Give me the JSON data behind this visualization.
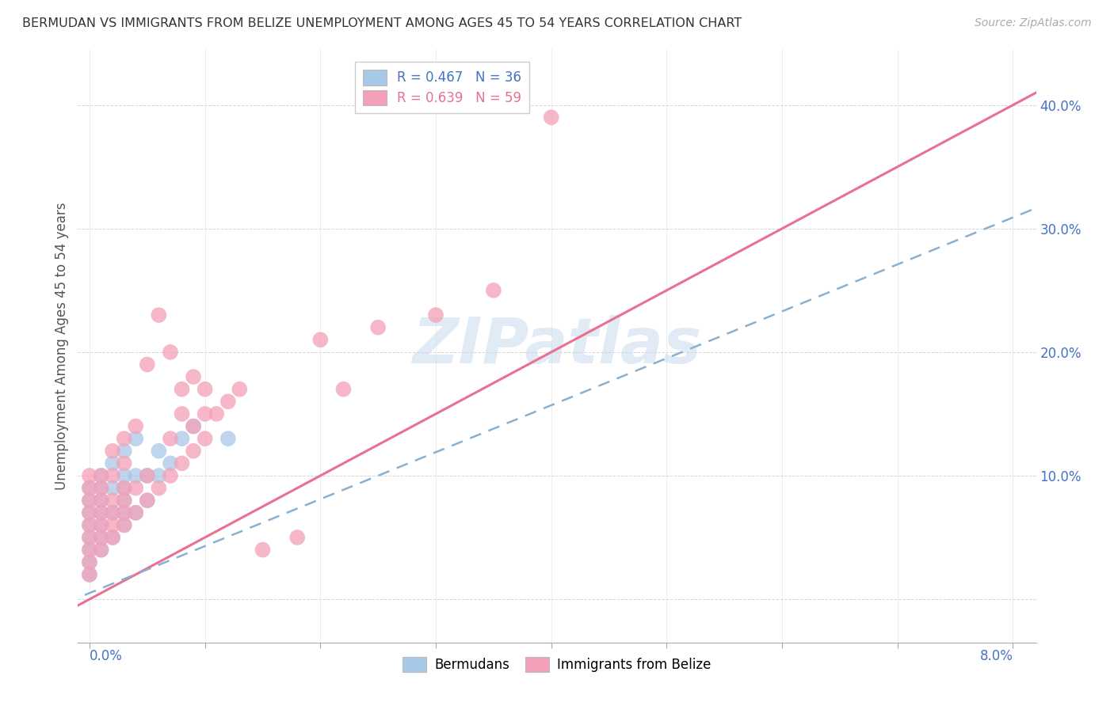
{
  "title": "BERMUDAN VS IMMIGRANTS FROM BELIZE UNEMPLOYMENT AMONG AGES 45 TO 54 YEARS CORRELATION CHART",
  "source": "Source: ZipAtlas.com",
  "ylabel": "Unemployment Among Ages 45 to 54 years",
  "color_blue": "#a8c8e8",
  "color_pink": "#f4a0b8",
  "color_blue_line": "#8ab0d0",
  "color_pink_line": "#e87090",
  "color_axis": "#4472c4",
  "watermark_color": "#c5d8ec",
  "xmin": -0.001,
  "xmax": 0.082,
  "ymin": -0.035,
  "ymax": 0.445,
  "ytick_vals": [
    0.0,
    0.1,
    0.2,
    0.3,
    0.4
  ],
  "ytick_labels": [
    "",
    "10.0%",
    "20.0%",
    "30.0%",
    "40.0%"
  ],
  "xtick_vals": [
    0.0,
    0.01,
    0.02,
    0.03,
    0.04,
    0.05,
    0.06,
    0.07,
    0.08
  ],
  "pink_line_slope": 5.0,
  "pink_line_intercept": 0.0,
  "blue_line_slope": 3.8,
  "blue_line_intercept": 0.005,
  "bermudans_x": [
    0.0,
    0.0,
    0.0,
    0.0,
    0.0,
    0.0,
    0.0,
    0.0,
    0.001,
    0.001,
    0.001,
    0.001,
    0.001,
    0.001,
    0.001,
    0.002,
    0.002,
    0.002,
    0.002,
    0.003,
    0.003,
    0.003,
    0.003,
    0.003,
    0.003,
    0.004,
    0.004,
    0.004,
    0.005,
    0.005,
    0.006,
    0.006,
    0.007,
    0.008,
    0.009,
    0.012
  ],
  "bermudans_y": [
    0.02,
    0.03,
    0.04,
    0.05,
    0.06,
    0.07,
    0.08,
    0.09,
    0.04,
    0.05,
    0.06,
    0.07,
    0.08,
    0.09,
    0.1,
    0.05,
    0.07,
    0.09,
    0.11,
    0.06,
    0.07,
    0.08,
    0.09,
    0.1,
    0.12,
    0.07,
    0.1,
    0.13,
    0.08,
    0.1,
    0.1,
    0.12,
    0.11,
    0.13,
    0.14,
    0.13
  ],
  "belize_x": [
    0.0,
    0.0,
    0.0,
    0.0,
    0.0,
    0.0,
    0.0,
    0.0,
    0.0,
    0.001,
    0.001,
    0.001,
    0.001,
    0.001,
    0.001,
    0.001,
    0.002,
    0.002,
    0.002,
    0.002,
    0.002,
    0.002,
    0.003,
    0.003,
    0.003,
    0.003,
    0.003,
    0.003,
    0.004,
    0.004,
    0.004,
    0.005,
    0.005,
    0.005,
    0.006,
    0.006,
    0.007,
    0.007,
    0.007,
    0.008,
    0.008,
    0.008,
    0.009,
    0.009,
    0.009,
    0.01,
    0.01,
    0.01,
    0.011,
    0.012,
    0.013,
    0.015,
    0.018,
    0.02,
    0.022,
    0.025,
    0.03,
    0.035,
    0.04
  ],
  "belize_y": [
    0.02,
    0.03,
    0.04,
    0.05,
    0.06,
    0.07,
    0.08,
    0.09,
    0.1,
    0.04,
    0.05,
    0.06,
    0.07,
    0.08,
    0.09,
    0.1,
    0.05,
    0.06,
    0.07,
    0.08,
    0.1,
    0.12,
    0.06,
    0.07,
    0.08,
    0.09,
    0.11,
    0.13,
    0.07,
    0.09,
    0.14,
    0.08,
    0.1,
    0.19,
    0.09,
    0.23,
    0.1,
    0.13,
    0.2,
    0.11,
    0.15,
    0.17,
    0.12,
    0.14,
    0.18,
    0.13,
    0.15,
    0.17,
    0.15,
    0.16,
    0.17,
    0.04,
    0.05,
    0.21,
    0.17,
    0.22,
    0.23,
    0.25,
    0.39
  ]
}
